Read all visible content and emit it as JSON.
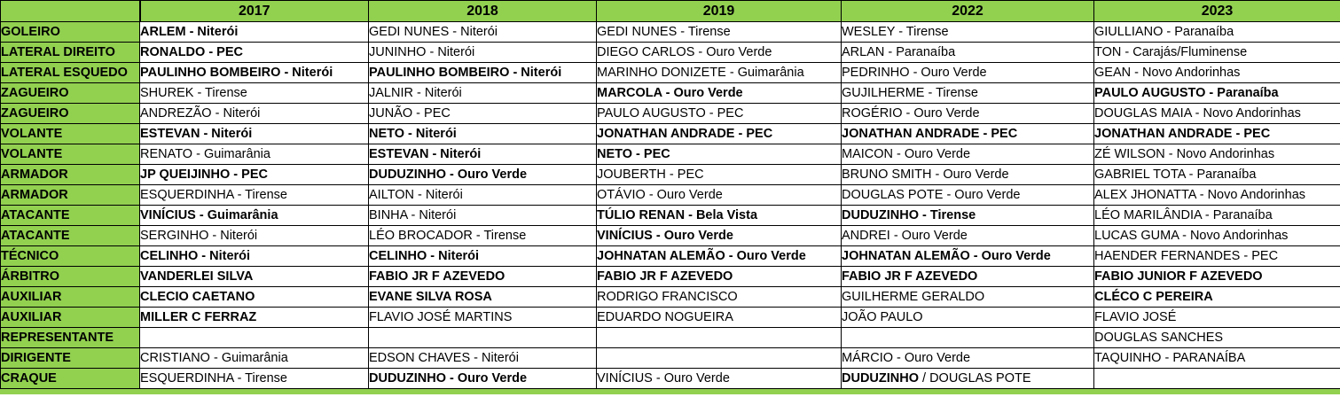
{
  "colors": {
    "header_green": "#92d050",
    "border": "#000000",
    "cell_background": "#ffffff",
    "text": "#000000"
  },
  "table": {
    "corner_label": "",
    "years": [
      "2017",
      "2018",
      "2019",
      "2022",
      "2023"
    ],
    "rows": [
      {
        "position": "GOLEIRO",
        "cells": [
          [
            {
              "text": "ARLEM - Niterói",
              "bold": true
            }
          ],
          [
            {
              "text": "GEDI NUNES - Niterói",
              "bold": false
            }
          ],
          [
            {
              "text": "GEDI NUNES - Tirense",
              "bold": false
            }
          ],
          [
            {
              "text": "WESLEY - Tirense",
              "bold": false
            }
          ],
          [
            {
              "text": "GIULLIANO - Paranaíba",
              "bold": false
            }
          ]
        ]
      },
      {
        "position": "LATERAL  DIREITO",
        "cells": [
          [
            {
              "text": "RONALDO - PEC",
              "bold": true
            }
          ],
          [
            {
              "text": "JUNINHO - Niterói",
              "bold": false
            }
          ],
          [
            {
              "text": "DIEGO CARLOS - Ouro Verde",
              "bold": false
            }
          ],
          [
            {
              "text": "ARLAN - Paranaíba",
              "bold": false
            }
          ],
          [
            {
              "text": "TON - Carajás/Fluminense",
              "bold": false
            }
          ]
        ]
      },
      {
        "position": "LATERAL ESQUEDO",
        "cells": [
          [
            {
              "text": "PAULINHO BOMBEIRO - Niterói",
              "bold": true
            }
          ],
          [
            {
              "text": "PAULINHO BOMBEIRO - Niterói",
              "bold": true
            }
          ],
          [
            {
              "text": "MARINHO DONIZETE - Guimarânia",
              "bold": false
            }
          ],
          [
            {
              "text": "PEDRINHO - Ouro Verde",
              "bold": false
            }
          ],
          [
            {
              "text": "GEAN - Novo Andorinhas",
              "bold": false
            }
          ]
        ]
      },
      {
        "position": "ZAGUEIRO",
        "cells": [
          [
            {
              "text": "SHUREK - Tirense",
              "bold": false
            }
          ],
          [
            {
              "text": "JALNIR - Niterói",
              "bold": false
            }
          ],
          [
            {
              "text": "MARCOLA - Ouro Verde",
              "bold": true
            }
          ],
          [
            {
              "text": "GUJILHERME - Tirense",
              "bold": false
            }
          ],
          [
            {
              "text": "PAULO AUGUSTO - Paranaíba",
              "bold": true
            }
          ]
        ]
      },
      {
        "position": "ZAGUEIRO",
        "cells": [
          [
            {
              "text": "ANDREZÃO - Niterói",
              "bold": false
            }
          ],
          [
            {
              "text": "JUNÃO - PEC",
              "bold": false
            }
          ],
          [
            {
              "text": "PAULO AUGUSTO - PEC",
              "bold": false
            }
          ],
          [
            {
              "text": "ROGÉRIO - Ouro Verde",
              "bold": false
            }
          ],
          [
            {
              "text": "DOUGLAS MAIA - Novo Andorinhas",
              "bold": false
            }
          ]
        ]
      },
      {
        "position": "VOLANTE",
        "cells": [
          [
            {
              "text": "ESTEVAN - Niterói",
              "bold": true
            }
          ],
          [
            {
              "text": "NETO - Niterói",
              "bold": true
            }
          ],
          [
            {
              "text": "JONATHAN ANDRADE - PEC",
              "bold": true
            }
          ],
          [
            {
              "text": "JONATHAN ANDRADE - PEC",
              "bold": true
            }
          ],
          [
            {
              "text": "JONATHAN ANDRADE - PEC",
              "bold": true
            }
          ]
        ]
      },
      {
        "position": "VOLANTE",
        "cells": [
          [
            {
              "text": "RENATO - Guimarânia",
              "bold": false
            }
          ],
          [
            {
              "text": "ESTEVAN - Niterói",
              "bold": true
            }
          ],
          [
            {
              "text": "NETO - PEC",
              "bold": true
            }
          ],
          [
            {
              "text": "MAICON - Ouro Verde",
              "bold": false
            }
          ],
          [
            {
              "text": "ZÉ WILSON - Novo Andorinhas",
              "bold": false
            }
          ]
        ]
      },
      {
        "position": "ARMADOR",
        "cells": [
          [
            {
              "text": "JP QUEIJINHO - PEC",
              "bold": true
            }
          ],
          [
            {
              "text": "DUDUZINHO - Ouro Verde",
              "bold": true
            }
          ],
          [
            {
              "text": "JOUBERTH - PEC",
              "bold": false
            }
          ],
          [
            {
              "text": "BRUNO SMITH - Ouro Verde",
              "bold": false
            }
          ],
          [
            {
              "text": "GABRIEL TOTA - Paranaíba",
              "bold": false
            }
          ]
        ]
      },
      {
        "position": "ARMADOR",
        "cells": [
          [
            {
              "text": "ESQUERDINHA - Tirense",
              "bold": false
            }
          ],
          [
            {
              "text": "AILTON - Niterói",
              "bold": false
            }
          ],
          [
            {
              "text": "OTÁVIO - Ouro Verde",
              "bold": false
            }
          ],
          [
            {
              "text": "DOUGLAS POTE - Ouro Verde",
              "bold": false
            }
          ],
          [
            {
              "text": "ALEX JHONATTA - Novo Andorinhas",
              "bold": false
            }
          ]
        ]
      },
      {
        "position": "ATACANTE",
        "cells": [
          [
            {
              "text": "VINÍCIUS - Guimarânia",
              "bold": true
            }
          ],
          [
            {
              "text": "BINHA - Niterói",
              "bold": false
            }
          ],
          [
            {
              "text": "TÚLIO RENAN - Bela Vista",
              "bold": true
            }
          ],
          [
            {
              "text": "DUDUZINHO - Tirense",
              "bold": true
            }
          ],
          [
            {
              "text": "LÉO MARILÂNDIA - Paranaíba",
              "bold": false
            }
          ]
        ]
      },
      {
        "position": "ATACANTE",
        "cells": [
          [
            {
              "text": "SERGINHO - Niterói",
              "bold": false
            }
          ],
          [
            {
              "text": "LÉO BROCADOR - Tirense",
              "bold": false
            }
          ],
          [
            {
              "text": "VINÍCIUS - Ouro Verde",
              "bold": true
            }
          ],
          [
            {
              "text": "ANDREI - Ouro Verde",
              "bold": false
            }
          ],
          [
            {
              "text": "LUCAS GUMA - Novo Andorinhas",
              "bold": false
            }
          ]
        ]
      },
      {
        "position": "TÉCNICO",
        "cells": [
          [
            {
              "text": "CELINHO - Niterói",
              "bold": true
            }
          ],
          [
            {
              "text": "CELINHO - Niterói",
              "bold": true
            }
          ],
          [
            {
              "text": "JOHNATAN ALEMÃO - Ouro Verde",
              "bold": true
            }
          ],
          [
            {
              "text": "JOHNATAN ALEMÃO - Ouro Verde",
              "bold": true
            }
          ],
          [
            {
              "text": "HAENDER FERNANDES - PEC",
              "bold": false
            }
          ]
        ]
      },
      {
        "position": "ÁRBITRO",
        "cells": [
          [
            {
              "text": "VANDERLEI SILVA",
              "bold": true
            }
          ],
          [
            {
              "text": "FABIO JR F AZEVEDO",
              "bold": true
            }
          ],
          [
            {
              "text": "FABIO JR F AZEVEDO",
              "bold": true
            }
          ],
          [
            {
              "text": "FABIO JR F AZEVEDO",
              "bold": true
            }
          ],
          [
            {
              "text": "FABIO JUNIOR F AZEVEDO",
              "bold": true
            }
          ]
        ]
      },
      {
        "position": "AUXILIAR",
        "cells": [
          [
            {
              "text": "CLECIO CAETANO",
              "bold": true
            }
          ],
          [
            {
              "text": "EVANE SILVA ROSA",
              "bold": true
            }
          ],
          [
            {
              "text": "RODRIGO FRANCISCO",
              "bold": false
            }
          ],
          [
            {
              "text": "GUILHERME GERALDO",
              "bold": false
            }
          ],
          [
            {
              "text": "CLÉCO C PEREIRA",
              "bold": true
            }
          ]
        ]
      },
      {
        "position": "AUXILIAR",
        "cells": [
          [
            {
              "text": "MILLER C FERRAZ",
              "bold": true
            }
          ],
          [
            {
              "text": "FLAVIO JOSÉ MARTINS",
              "bold": false
            }
          ],
          [
            {
              "text": "EDUARDO NOGUEIRA",
              "bold": false
            }
          ],
          [
            {
              "text": "JOÃO PAULO",
              "bold": false
            }
          ],
          [
            {
              "text": "FLAVIO JOSÉ",
              "bold": false
            }
          ]
        ]
      },
      {
        "position": "REPRESENTANTE",
        "cells": [
          [],
          [],
          [],
          [],
          [
            {
              "text": "DOUGLAS SANCHES",
              "bold": false
            }
          ]
        ]
      },
      {
        "position": "DIRIGENTE",
        "cells": [
          [
            {
              "text": "CRISTIANO - Guimarânia",
              "bold": false
            }
          ],
          [
            {
              "text": "EDSON CHAVES - Niterói",
              "bold": false
            }
          ],
          [],
          [
            {
              "text": "MÁRCIO - Ouro Verde",
              "bold": false
            }
          ],
          [
            {
              "text": "TAQUINHO - PARANAÍBA",
              "bold": false
            }
          ]
        ]
      },
      {
        "position": "CRAQUE",
        "cells": [
          [
            {
              "text": "ESQUERDINHA - Tirense",
              "bold": false
            }
          ],
          [
            {
              "text": "DUDUZINHO - Ouro Verde",
              "bold": true
            }
          ],
          [
            {
              "text": "VINÍCIUS - Ouro Verde",
              "bold": false
            }
          ],
          [
            {
              "text": "DUDUZINHO ",
              "bold": true
            },
            {
              "text": "/ DOUGLAS POTE",
              "bold": false
            }
          ],
          []
        ]
      }
    ]
  }
}
